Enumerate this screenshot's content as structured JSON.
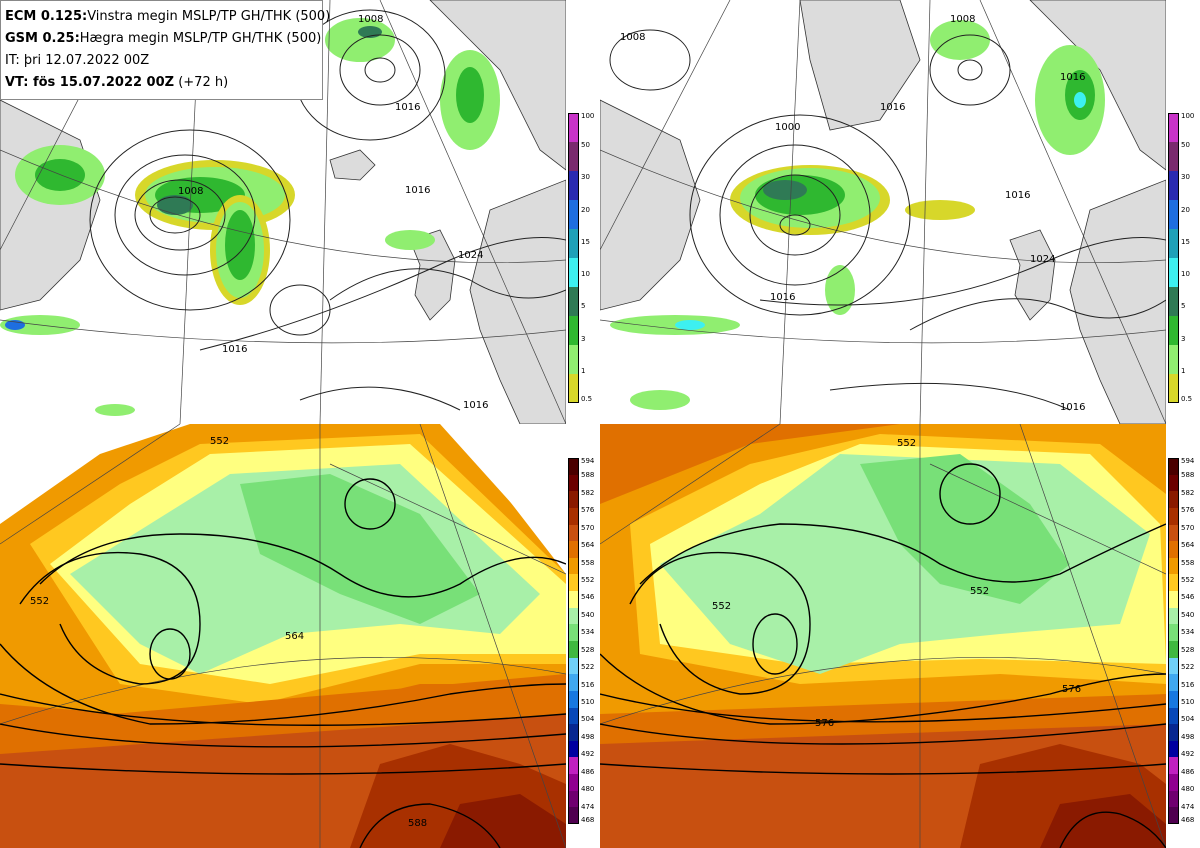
{
  "info": {
    "line1_bold": "ECM 0.125:",
    "line1_text": "Vinstra megin MSLP/TP GH/THK (500)",
    "line2_bold": "GSM 0.25:",
    "line2_text": "Hægra megin MSLP/TP GH/THK (500)",
    "line3_text": "IT: þri 12.07.2022 00Z",
    "line4_bold": "VT: fös 15.07.2022 00Z",
    "line4_text": " (+72 h)"
  },
  "maps": {
    "tl": {
      "contour_labels": [
        "1008",
        "1016",
        "1016",
        "1008",
        "1016",
        "1024",
        "1016"
      ]
    },
    "tr": {
      "contour_labels": [
        "1008",
        "1008",
        "1000",
        "1016",
        "1016",
        "1016",
        "1024",
        "1016",
        "1016"
      ]
    },
    "bl": {
      "contour_labels": [
        "552",
        "564",
        "552",
        "588"
      ]
    },
    "br": {
      "contour_labels": [
        "552",
        "552",
        "552",
        "576",
        "576"
      ]
    }
  },
  "precip_colorbar": {
    "ticks": [
      "100",
      "50",
      "30",
      "20",
      "15",
      "10",
      "5",
      "3",
      "1",
      "0.5"
    ],
    "colors": [
      "#c833c8",
      "#7a2a6e",
      "#2a2ab0",
      "#1e6ee0",
      "#1fa0b8",
      "#3df0f0",
      "#2f7a55",
      "#2fb830",
      "#90ee70",
      "#d7d72a"
    ]
  },
  "thickness_colorbar": {
    "ticks": [
      "594",
      "588",
      "582",
      "576",
      "570",
      "564",
      "558",
      "552",
      "546",
      "540",
      "534",
      "528",
      "522",
      "516",
      "510",
      "504",
      "498",
      "492",
      "486",
      "480",
      "474",
      "468"
    ],
    "colors": [
      "#4a0000",
      "#6b0000",
      "#8a1a00",
      "#a83000",
      "#c85010",
      "#e07000",
      "#f09a00",
      "#ffc820",
      "#ffff80",
      "#a8f0a8",
      "#78e078",
      "#40b840",
      "#70d0f8",
      "#40a8f0",
      "#1878e0",
      "#0848b8",
      "#082890",
      "#0000a0",
      "#c020c0",
      "#900090",
      "#700070",
      "#500050"
    ]
  },
  "colors": {
    "land": "#dcdcdc",
    "sea": "#ffffff",
    "coast": "#333333",
    "isobar": "#222222"
  }
}
